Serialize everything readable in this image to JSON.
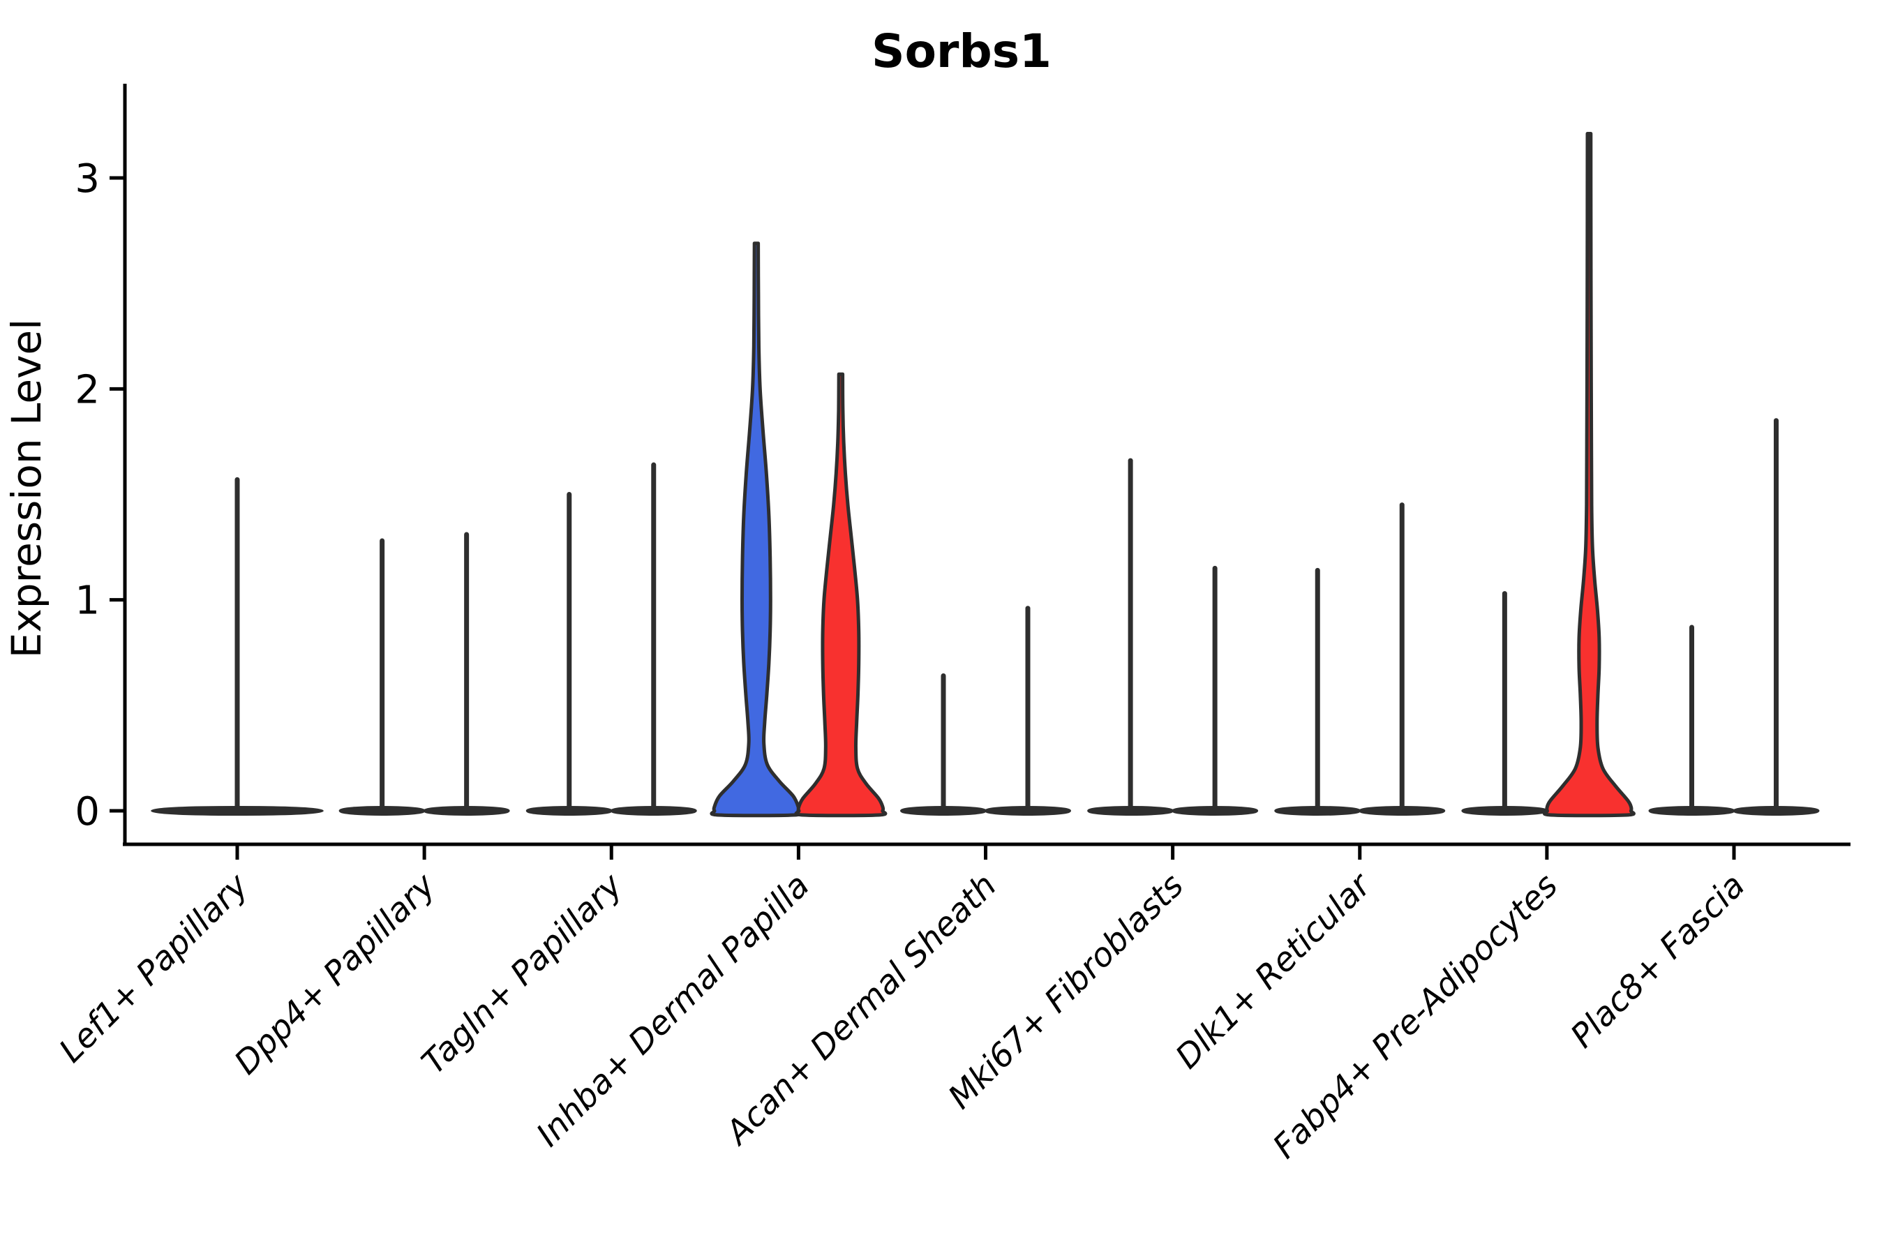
{
  "title": "Sorbs1",
  "chart_data": {
    "type": "violin",
    "title": "Sorbs1",
    "xlabel": "",
    "ylabel": "Expression Level",
    "ylim": [
      -0.16,
      3.45
    ],
    "yticks": [
      0,
      1,
      2,
      3
    ],
    "grid": false,
    "legend": "none",
    "outline_color": "#2e2e2e",
    "axis_color": "#000000",
    "group_colors": {
      "left": "#4169E1",
      "right": "#F8312F"
    },
    "categories": [
      "Lef1+ Papillary",
      "Dpp4+ Papillary",
      "Tagln+ Papillary",
      "Inhba+ Dermal Papilla",
      "Acan+ Dermal Sheath",
      "Mki67+ Fibroblasts",
      "Dlk1+ Reticular",
      "Fabp4+ Pre-Adipocytes",
      "Plac8+ Fascia"
    ],
    "violins": [
      {
        "category_index": 0,
        "position": "center",
        "style": "spike",
        "peak": 1.57,
        "base_halfwidth_rel": 2.03,
        "color": "#2e2e2e"
      },
      {
        "category_index": 1,
        "position": "left",
        "style": "spike",
        "peak": 1.28,
        "color": "#4169E1"
      },
      {
        "category_index": 1,
        "position": "right",
        "style": "spike",
        "peak": 1.31,
        "color": "#F8312F"
      },
      {
        "category_index": 2,
        "position": "left",
        "style": "spike",
        "peak": 1.5,
        "color": "#4169E1"
      },
      {
        "category_index": 2,
        "position": "right",
        "style": "spike",
        "peak": 1.64,
        "color": "#F8312F"
      },
      {
        "category_index": 3,
        "position": "left",
        "style": "body",
        "peak": 2.69,
        "color": "#4169E1",
        "profile": [
          [
            2.69,
            0.045
          ],
          [
            2.45,
            0.05
          ],
          [
            2.2,
            0.06
          ],
          [
            2.0,
            0.09
          ],
          [
            1.8,
            0.16
          ],
          [
            1.6,
            0.24
          ],
          [
            1.4,
            0.3
          ],
          [
            1.2,
            0.33
          ],
          [
            1.0,
            0.34
          ],
          [
            0.85,
            0.33
          ],
          [
            0.7,
            0.3
          ],
          [
            0.55,
            0.25
          ],
          [
            0.42,
            0.2
          ],
          [
            0.32,
            0.18
          ],
          [
            0.22,
            0.26
          ],
          [
            0.14,
            0.55
          ],
          [
            0.07,
            0.88
          ],
          [
            0.02,
            1.0
          ],
          [
            0.0,
            1.0
          ]
        ]
      },
      {
        "category_index": 3,
        "position": "right",
        "style": "body",
        "peak": 2.07,
        "color": "#F8312F",
        "profile": [
          [
            2.07,
            0.045
          ],
          [
            1.9,
            0.05
          ],
          [
            1.75,
            0.07
          ],
          [
            1.6,
            0.11
          ],
          [
            1.45,
            0.17
          ],
          [
            1.3,
            0.25
          ],
          [
            1.15,
            0.33
          ],
          [
            1.0,
            0.4
          ],
          [
            0.85,
            0.43
          ],
          [
            0.7,
            0.43
          ],
          [
            0.55,
            0.41
          ],
          [
            0.42,
            0.38
          ],
          [
            0.3,
            0.36
          ],
          [
            0.2,
            0.4
          ],
          [
            0.13,
            0.6
          ],
          [
            0.06,
            0.9
          ],
          [
            0.02,
            1.0
          ],
          [
            0.0,
            1.0
          ]
        ]
      },
      {
        "category_index": 4,
        "position": "left",
        "style": "spike",
        "peak": 0.64,
        "color": "#4169E1"
      },
      {
        "category_index": 4,
        "position": "right",
        "style": "spike",
        "peak": 0.96,
        "color": "#F8312F"
      },
      {
        "category_index": 5,
        "position": "left",
        "style": "spike",
        "peak": 1.66,
        "color": "#4169E1"
      },
      {
        "category_index": 5,
        "position": "right",
        "style": "spike",
        "peak": 1.15,
        "color": "#F8312F"
      },
      {
        "category_index": 6,
        "position": "left",
        "style": "spike",
        "peak": 1.14,
        "color": "#4169E1"
      },
      {
        "category_index": 6,
        "position": "right",
        "style": "spike",
        "peak": 1.45,
        "color": "#F8312F"
      },
      {
        "category_index": 7,
        "position": "left",
        "style": "spike",
        "peak": 1.03,
        "color": "#4169E1"
      },
      {
        "category_index": 7,
        "position": "right",
        "style": "body",
        "peak": 3.21,
        "color": "#F8312F",
        "profile": [
          [
            3.21,
            0.04
          ],
          [
            2.8,
            0.042
          ],
          [
            2.4,
            0.045
          ],
          [
            2.0,
            0.05
          ],
          [
            1.7,
            0.055
          ],
          [
            1.45,
            0.06
          ],
          [
            1.25,
            0.08
          ],
          [
            1.1,
            0.13
          ],
          [
            0.95,
            0.2
          ],
          [
            0.82,
            0.24
          ],
          [
            0.68,
            0.24
          ],
          [
            0.55,
            0.21
          ],
          [
            0.42,
            0.19
          ],
          [
            0.3,
            0.21
          ],
          [
            0.2,
            0.33
          ],
          [
            0.12,
            0.62
          ],
          [
            0.05,
            0.92
          ],
          [
            0.02,
            1.0
          ],
          [
            0.0,
            1.0
          ]
        ]
      },
      {
        "category_index": 8,
        "position": "left",
        "style": "spike",
        "peak": 0.87,
        "color": "#4169E1"
      },
      {
        "category_index": 8,
        "position": "right",
        "style": "spike",
        "peak": 1.85,
        "color": "#F8312F"
      }
    ]
  }
}
